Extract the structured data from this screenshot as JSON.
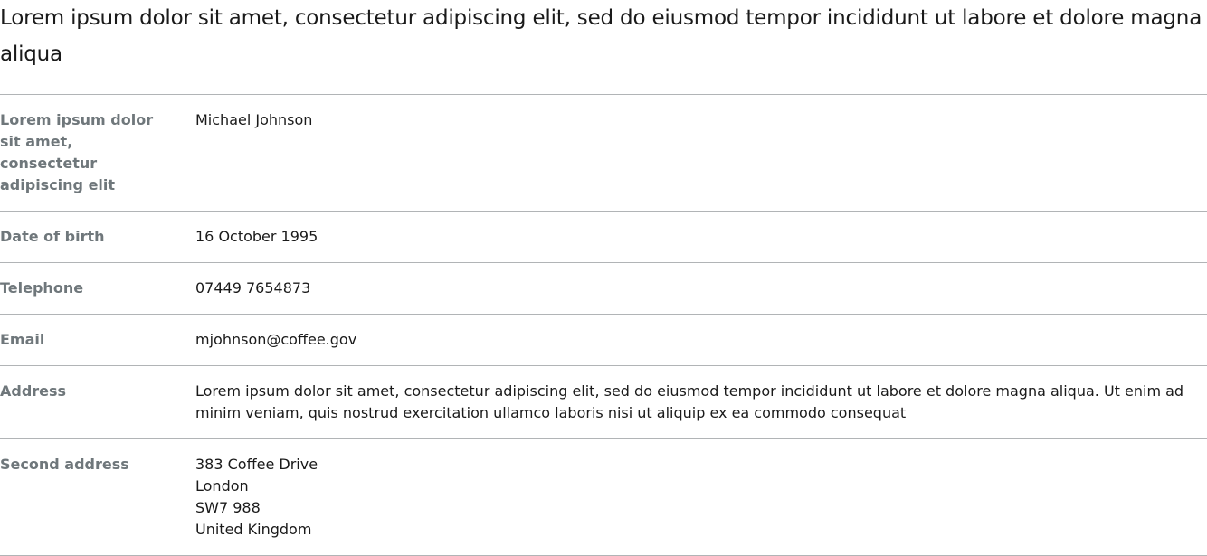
{
  "title": "Lorem ipsum dolor sit amet, consectetur adipiscing elit, sed do eiusmod tempor incididunt ut labore et dolore magna aliqua",
  "rows": [
    {
      "key": "Lorem ipsum dolor sit amet, consectetur adipiscing elit",
      "value": "Michael Johnson"
    },
    {
      "key": "Date of birth",
      "value": "16 October 1995"
    },
    {
      "key": "Telephone",
      "value": "07449 7654873"
    },
    {
      "key": "Email",
      "value": "mjohnson@coffee.gov"
    },
    {
      "key": "Address",
      "value": "Lorem ipsum dolor sit amet, consectetur adipiscing elit, sed do eiusmod tempor incididunt ut labore et dolore magna aliqua. Ut enim ad minim veniam, quis nostrud exercitation ullamco laboris nisi ut aliquip ex ea commodo consequat"
    },
    {
      "key": "Second address",
      "lines": [
        "383 Coffee Drive",
        "London",
        "SW7 988",
        "United Kingdom"
      ]
    }
  ]
}
